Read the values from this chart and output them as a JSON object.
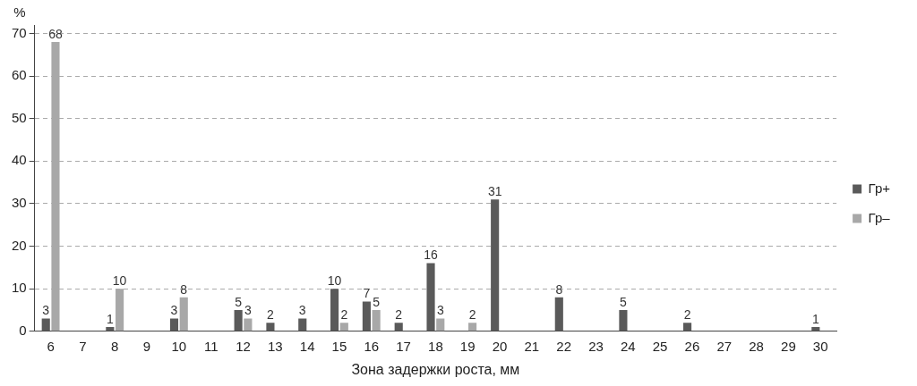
{
  "chart_data": {
    "type": "bar",
    "xlabel": "Зона задержки роста, мм",
    "ylabel": "%",
    "categories": [
      "6",
      "7",
      "8",
      "9",
      "10",
      "11",
      "12",
      "13",
      "14",
      "15",
      "16",
      "17",
      "18",
      "19",
      "20",
      "21",
      "22",
      "23",
      "24",
      "25",
      "26",
      "27",
      "28",
      "29",
      "30"
    ],
    "series": [
      {
        "name": "Гр+",
        "color": "#5a5a5a",
        "values": [
          3,
          null,
          1,
          null,
          3,
          null,
          5,
          2,
          3,
          10,
          7,
          2,
          16,
          null,
          31,
          null,
          8,
          null,
          5,
          null,
          2,
          null,
          null,
          null,
          1
        ]
      },
      {
        "name": "Гр–",
        "color": "#a8a8a8",
        "values": [
          68,
          null,
          10,
          null,
          8,
          null,
          3,
          null,
          null,
          2,
          5,
          null,
          3,
          2,
          null,
          null,
          null,
          null,
          null,
          null,
          null,
          null,
          null,
          null,
          null
        ]
      }
    ],
    "ylim": [
      0,
      72
    ],
    "yticks": [
      0,
      10,
      20,
      30,
      40,
      50,
      60,
      70
    ],
    "grid": "y",
    "legend": "right",
    "data_labels": true
  }
}
